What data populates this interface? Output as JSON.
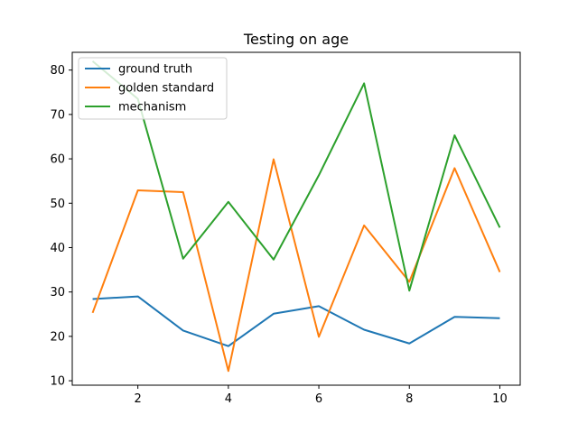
{
  "chart_data": {
    "type": "line",
    "title": "Testing on age",
    "xlabel": "",
    "ylabel": "",
    "x": [
      1,
      2,
      3,
      4,
      5,
      6,
      7,
      8,
      9,
      10
    ],
    "xlim": [
      0.55,
      10.45
    ],
    "ylim": [
      9.0,
      84.0
    ],
    "xticks": [
      2,
      4,
      6,
      8,
      10
    ],
    "yticks": [
      10,
      20,
      30,
      40,
      50,
      60,
      70,
      80
    ],
    "grid": false,
    "legend_position": "top-left",
    "series": [
      {
        "name": "ground truth",
        "color": "#1f77b4",
        "values": [
          28.4,
          29.0,
          21.3,
          17.8,
          25.1,
          26.8,
          21.5,
          18.4,
          24.4,
          24.1
        ]
      },
      {
        "name": "golden standard",
        "color": "#ff7f0e",
        "values": [
          25.3,
          52.9,
          52.5,
          12.2,
          59.9,
          19.9,
          45.0,
          32.3,
          57.9,
          34.5
        ]
      },
      {
        "name": "mechanism",
        "color": "#2ca02c",
        "values": [
          82.0,
          73.5,
          37.5,
          50.3,
          37.3,
          56.3,
          77.0,
          30.3,
          65.3,
          44.5
        ]
      }
    ]
  }
}
